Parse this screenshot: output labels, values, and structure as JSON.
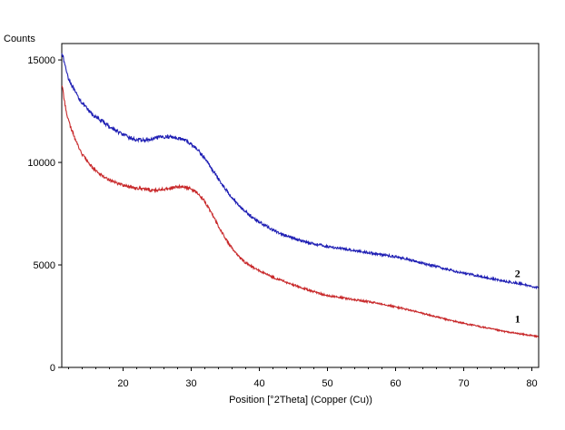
{
  "chart_data": {
    "type": "line",
    "title": "",
    "xlabel": "Position [°2Theta] (Copper (Cu))",
    "ylabel": "Counts",
    "xlim": [
      11,
      81
    ],
    "ylim": [
      0,
      15800
    ],
    "x_ticks": [
      20,
      30,
      40,
      50,
      60,
      70,
      80
    ],
    "y_ticks": [
      0,
      5000,
      10000,
      15000
    ],
    "grid": false,
    "legend": "none",
    "series": [
      {
        "name": "2",
        "color": "#1f1fb4",
        "points": [
          [
            11,
            15400
          ],
          [
            11.5,
            14700
          ],
          [
            12,
            14100
          ],
          [
            13,
            13400
          ],
          [
            14,
            12900
          ],
          [
            15,
            12500
          ],
          [
            16,
            12200
          ],
          [
            17,
            12000
          ],
          [
            18,
            11750
          ],
          [
            19,
            11550
          ],
          [
            20,
            11350
          ],
          [
            21,
            11200
          ],
          [
            22,
            11100
          ],
          [
            23,
            11080
          ],
          [
            24,
            11100
          ],
          [
            25,
            11200
          ],
          [
            26,
            11250
          ],
          [
            27,
            11250
          ],
          [
            28,
            11200
          ],
          [
            29,
            11100
          ],
          [
            30,
            10900
          ],
          [
            31,
            10600
          ],
          [
            32,
            10200
          ],
          [
            33,
            9700
          ],
          [
            34,
            9200
          ],
          [
            35,
            8700
          ],
          [
            36,
            8300
          ],
          [
            37,
            7900
          ],
          [
            38,
            7600
          ],
          [
            39,
            7300
          ],
          [
            40,
            7100
          ],
          [
            41,
            6900
          ],
          [
            42,
            6700
          ],
          [
            43,
            6550
          ],
          [
            44,
            6400
          ],
          [
            45,
            6300
          ],
          [
            47,
            6100
          ],
          [
            50,
            5900
          ],
          [
            53,
            5750
          ],
          [
            56,
            5600
          ],
          [
            58,
            5500
          ],
          [
            60,
            5400
          ],
          [
            62,
            5250
          ],
          [
            65,
            5000
          ],
          [
            68,
            4750
          ],
          [
            70,
            4600
          ],
          [
            73,
            4400
          ],
          [
            76,
            4200
          ],
          [
            78,
            4100
          ],
          [
            80,
            3950
          ],
          [
            81,
            3900
          ]
        ],
        "label": "2",
        "label_at": [
          77.5,
          4400
        ]
      },
      {
        "name": "1",
        "color": "#c8282a",
        "points": [
          [
            11,
            13800
          ],
          [
            11.5,
            12800
          ],
          [
            12,
            12000
          ],
          [
            13,
            11100
          ],
          [
            14,
            10400
          ],
          [
            15,
            9950
          ],
          [
            16,
            9600
          ],
          [
            17,
            9350
          ],
          [
            18,
            9150
          ],
          [
            19,
            9000
          ],
          [
            20,
            8900
          ],
          [
            21,
            8800
          ],
          [
            22,
            8750
          ],
          [
            23,
            8700
          ],
          [
            24,
            8650
          ],
          [
            25,
            8650
          ],
          [
            26,
            8700
          ],
          [
            27,
            8750
          ],
          [
            28,
            8800
          ],
          [
            29,
            8800
          ],
          [
            30,
            8700
          ],
          [
            31,
            8500
          ],
          [
            32,
            8100
          ],
          [
            33,
            7500
          ],
          [
            34,
            6900
          ],
          [
            35,
            6300
          ],
          [
            36,
            5800
          ],
          [
            37,
            5400
          ],
          [
            38,
            5100
          ],
          [
            39,
            4900
          ],
          [
            40,
            4700
          ],
          [
            42,
            4400
          ],
          [
            44,
            4150
          ],
          [
            46,
            3900
          ],
          [
            48,
            3700
          ],
          [
            50,
            3500
          ],
          [
            53,
            3350
          ],
          [
            56,
            3200
          ],
          [
            58,
            3100
          ],
          [
            60,
            2950
          ],
          [
            62,
            2800
          ],
          [
            65,
            2550
          ],
          [
            68,
            2300
          ],
          [
            70,
            2150
          ],
          [
            73,
            1950
          ],
          [
            76,
            1750
          ],
          [
            78,
            1650
          ],
          [
            80,
            1550
          ],
          [
            81,
            1500
          ]
        ],
        "label": "1",
        "label_at": [
          77.5,
          2200
        ]
      }
    ]
  }
}
